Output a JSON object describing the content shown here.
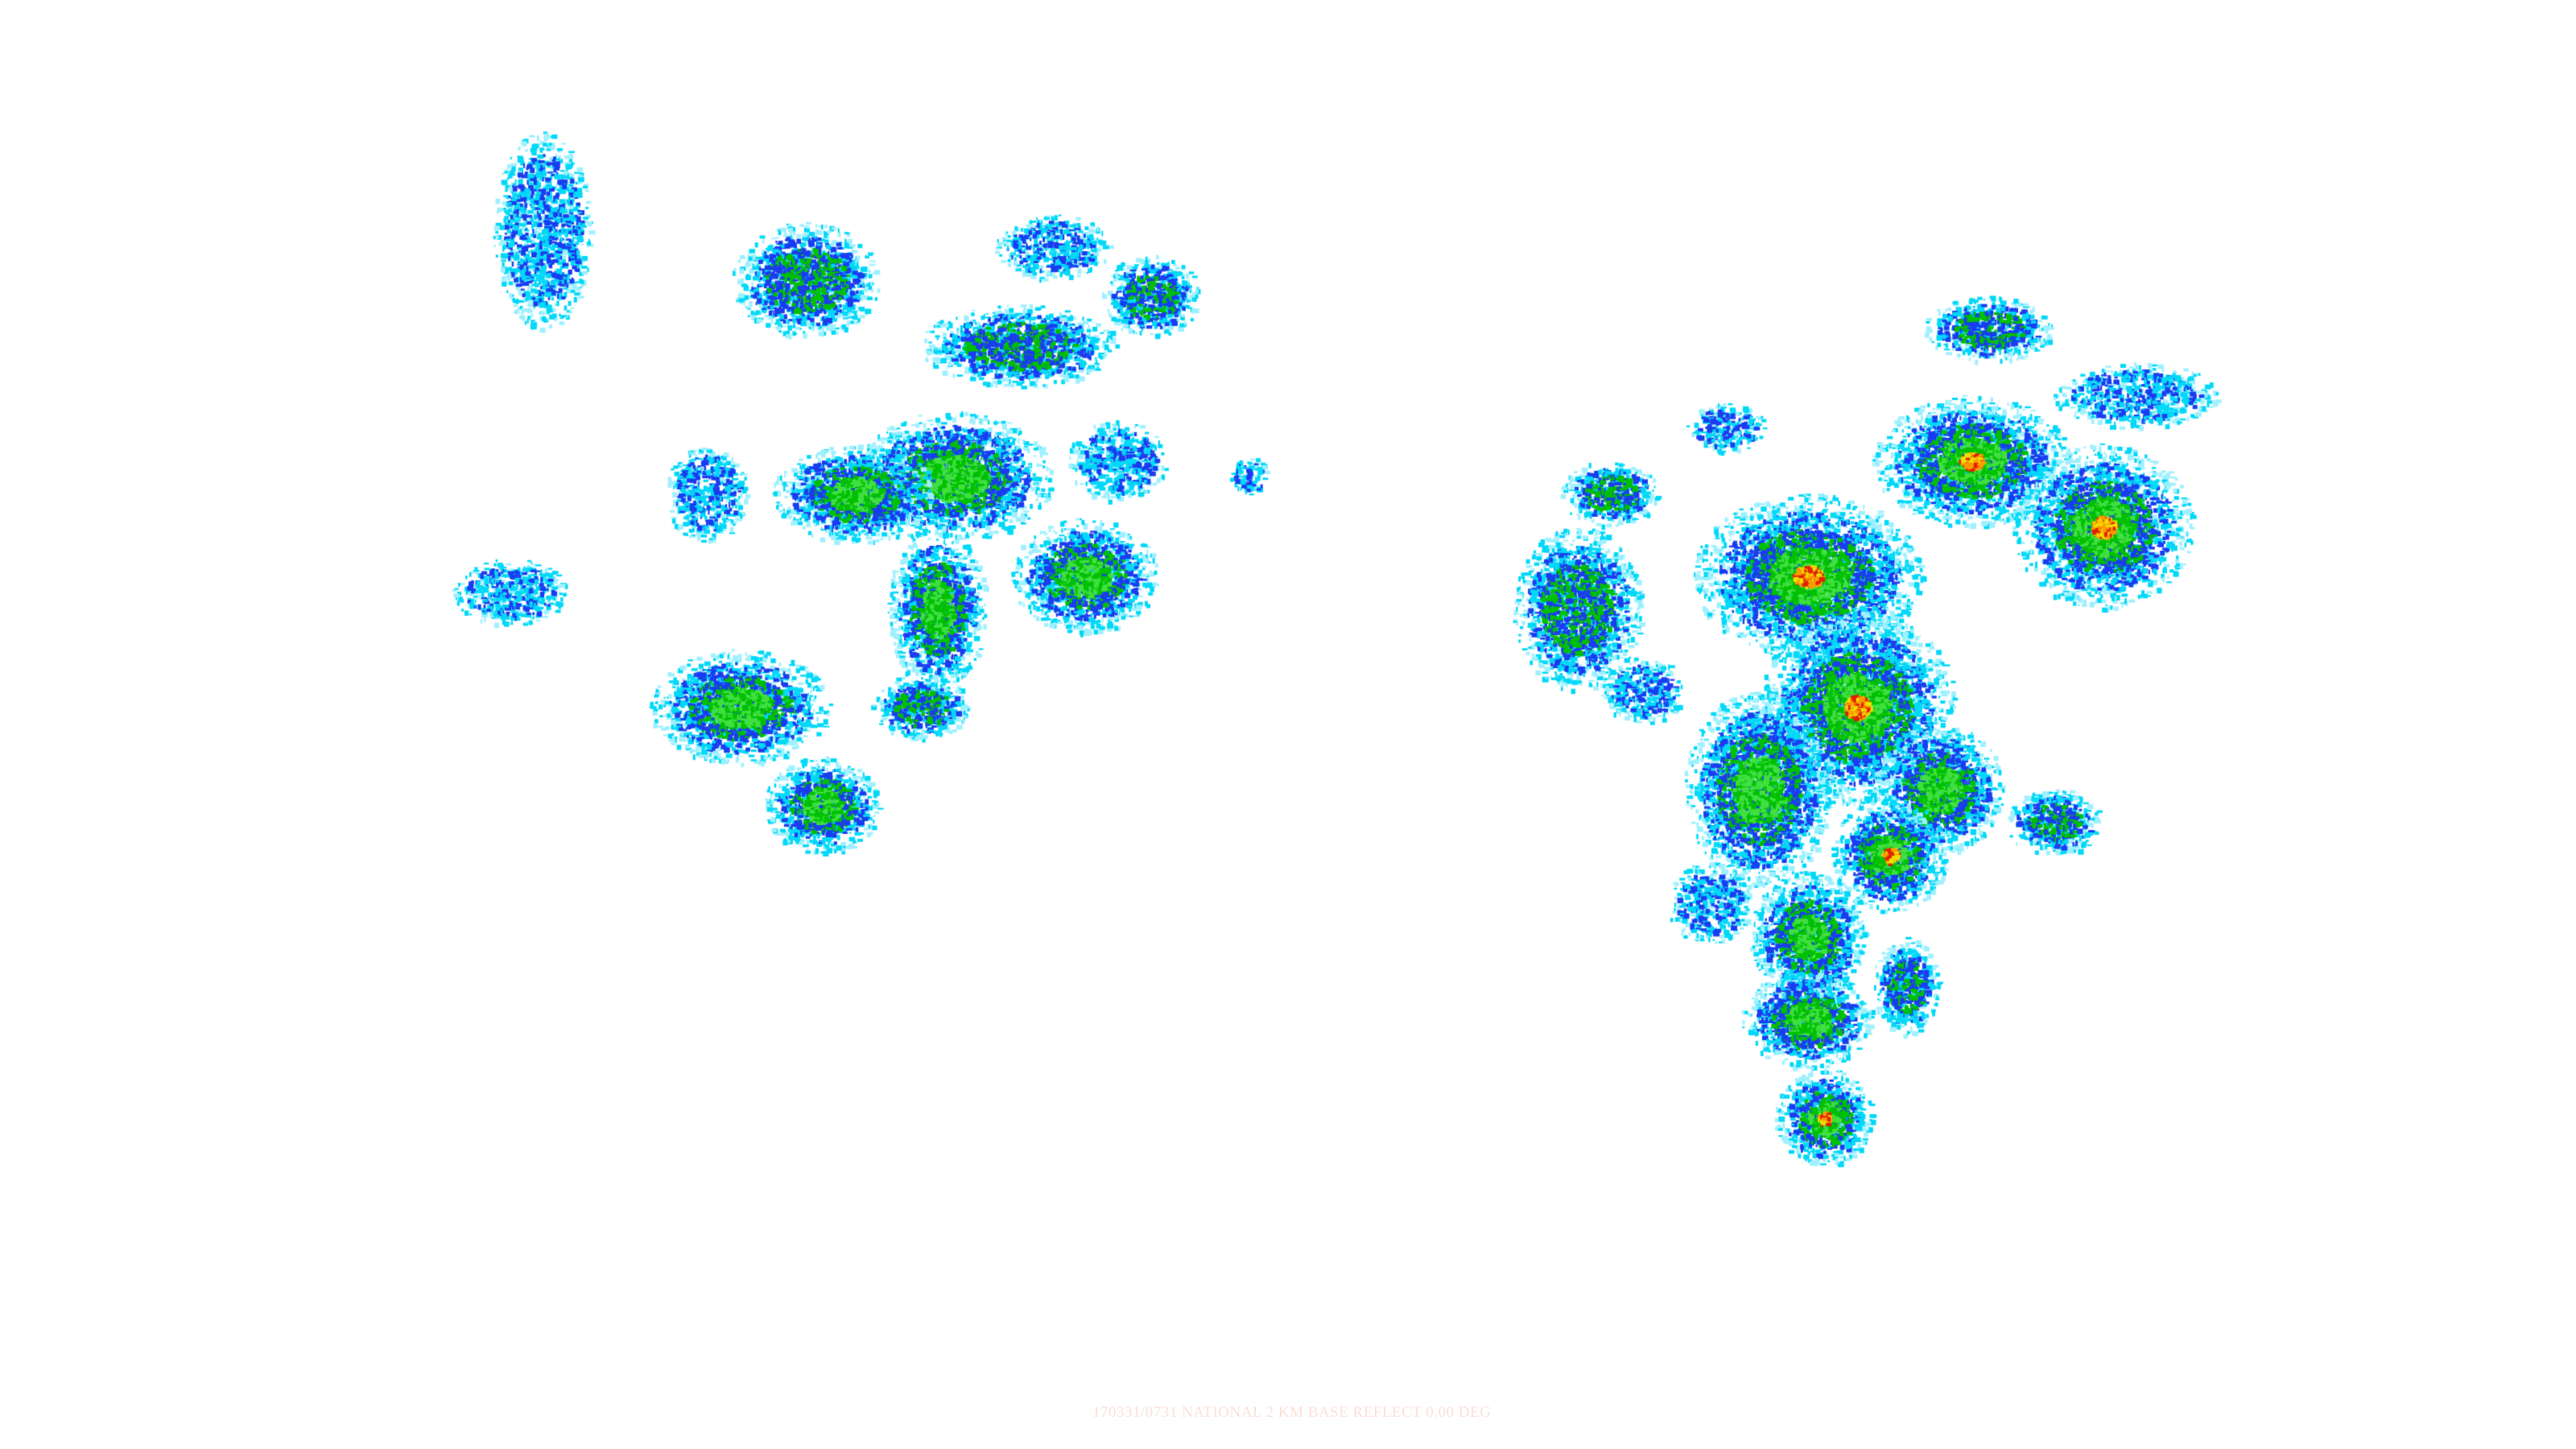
{
  "map": {
    "product": "radar-reflectivity-mosaic",
    "caption": "170331/0731 NATIONAL 2 KM BASE REFLECT 0.00 DEG",
    "palette": {
      "light_cyan": "#9ff0ff",
      "cyan": "#00d8f8",
      "blue": "#1a3cf0",
      "dark_blue": "#0000c8",
      "green": "#00c000",
      "light_green": "#40e040",
      "yellow": "#f0e000",
      "orange": "#ff9a00",
      "red": "#e02000"
    }
  }
}
